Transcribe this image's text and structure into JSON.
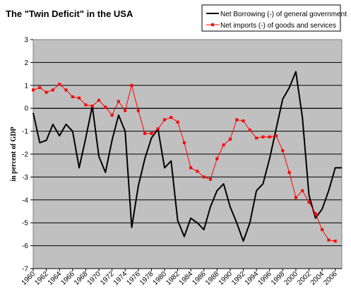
{
  "chart_data": {
    "type": "line",
    "title": "The \"Twin Deficit\" in the USA",
    "ylabel": "in percent of GDP",
    "xlabel": "",
    "ylim": [
      -7,
      3
    ],
    "yticks": [
      3,
      2,
      1,
      0,
      -1,
      -2,
      -3,
      -4,
      -5,
      -6,
      -7
    ],
    "xlim": [
      1960,
      2007
    ],
    "xticks": [
      1960,
      1962,
      1964,
      1966,
      1968,
      1970,
      1972,
      1974,
      1976,
      1978,
      1980,
      1982,
      1984,
      1986,
      1988,
      1990,
      1992,
      1994,
      1996,
      1998,
      2000,
      2002,
      2004,
      2006
    ],
    "grid": "horizontal",
    "plot_background": "#c0c0c0",
    "legend_position": "top-right",
    "x": [
      1960,
      1961,
      1962,
      1963,
      1964,
      1965,
      1966,
      1967,
      1968,
      1969,
      1970,
      1971,
      1972,
      1973,
      1974,
      1975,
      1976,
      1977,
      1978,
      1979,
      1980,
      1981,
      1982,
      1983,
      1984,
      1985,
      1986,
      1987,
      1988,
      1989,
      1990,
      1991,
      1992,
      1993,
      1994,
      1995,
      1996,
      1997,
      1998,
      1999,
      2000,
      2001,
      2002,
      2003,
      2004,
      2005,
      2006,
      2007
    ],
    "series": [
      {
        "name": "Net Borrowing (-) of general government",
        "color": "#000000",
        "marker": "none",
        "values": [
          -0.2,
          -1.5,
          -1.4,
          -0.7,
          -1.2,
          -0.7,
          -1.0,
          -2.6,
          -1.3,
          0.1,
          -2.1,
          -2.8,
          -1.4,
          -0.3,
          -1.0,
          -5.2,
          -3.4,
          -2.2,
          -1.3,
          -0.9,
          -2.6,
          -2.3,
          -4.9,
          -5.6,
          -4.8,
          -5.0,
          -5.3,
          -4.3,
          -3.6,
          -3.3,
          -4.3,
          -5.0,
          -5.8,
          -5.0,
          -3.6,
          -3.3,
          -2.2,
          -0.9,
          0.4,
          0.9,
          1.6,
          -0.4,
          -3.8,
          -4.8,
          -4.4,
          -3.6,
          -2.6,
          -2.6
        ]
      },
      {
        "name": "Net imports (-) of goods and services",
        "color": "#ff0000",
        "marker": "square",
        "values": [
          0.8,
          0.9,
          0.7,
          0.8,
          1.05,
          0.8,
          0.5,
          0.45,
          0.15,
          0.1,
          0.35,
          0.05,
          -0.3,
          0.3,
          -0.1,
          1.0,
          -0.1,
          -1.1,
          -1.1,
          -0.9,
          -0.5,
          -0.4,
          -0.6,
          -1.5,
          -2.6,
          -2.75,
          -3.0,
          -3.1,
          -2.2,
          -1.6,
          -1.35,
          -0.5,
          -0.55,
          -0.95,
          -1.3,
          -1.25,
          -1.25,
          -1.2,
          -1.85,
          -2.8,
          -3.9,
          -3.6,
          -4.1,
          -4.6,
          -5.3,
          -5.75,
          -5.8,
          null
        ]
      }
    ]
  }
}
